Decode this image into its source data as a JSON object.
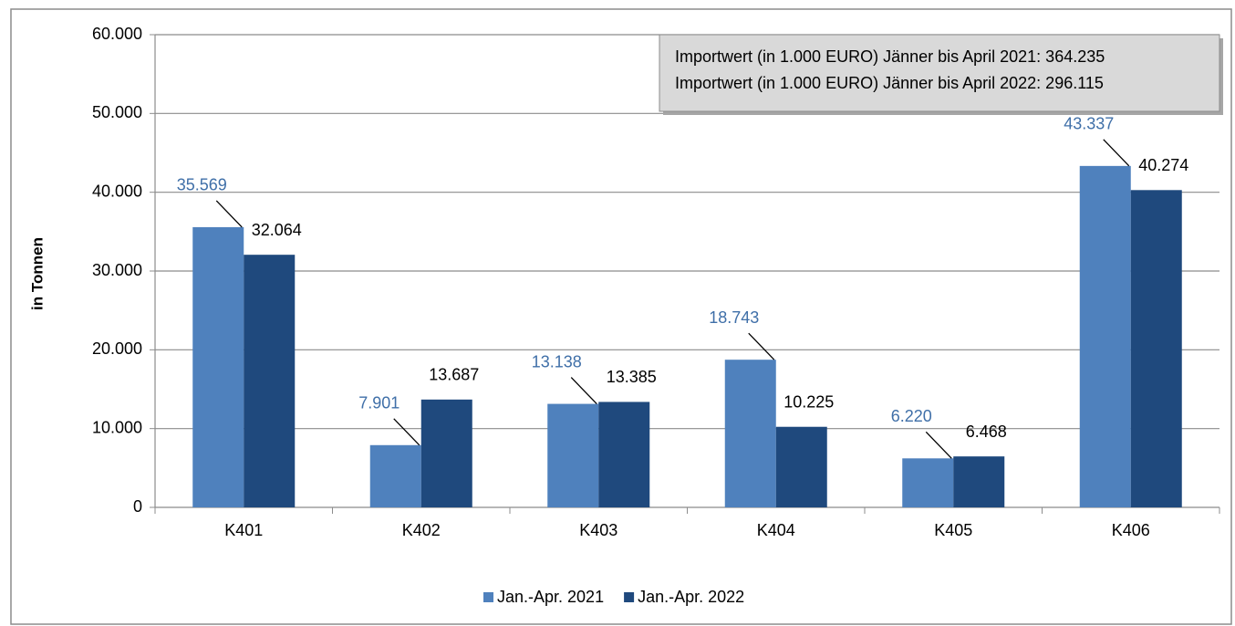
{
  "chart_data": {
    "type": "bar",
    "ylabel": "in Tonnen",
    "annotations": [
      "Importwert (in 1.000 EURO) Jänner bis April 2021: 364.235",
      "Importwert (in 1.000 EURO) Jänner bis April 2022: 296.115"
    ],
    "categories": [
      "K401",
      "K402",
      "K403",
      "K404",
      "K405",
      "K406"
    ],
    "series": [
      {
        "name": "Jan.-Apr. 2021",
        "color": "#4f81bd",
        "label_color": "#3f6fa8",
        "values": [
          35569,
          7901,
          13138,
          18743,
          6220,
          43337
        ],
        "value_labels": [
          "35.569",
          "7.901",
          "13.138",
          "18.743",
          "6.220",
          "43.337"
        ]
      },
      {
        "name": "Jan.-Apr. 2022",
        "color": "#1f497d",
        "label_color": "#000000",
        "values": [
          32064,
          13687,
          13385,
          10225,
          6468,
          40274
        ],
        "value_labels": [
          "32.064",
          "13.687",
          "13.385",
          "10.225",
          "6.468",
          "40.274"
        ]
      }
    ],
    "ylim": [
      0,
      60000
    ],
    "yticks": [
      0,
      {
        "value": 10000,
        "label": "10.000"
      },
      {
        "value": 20000,
        "label": "20.000"
      },
      {
        "value": 30000,
        "label": "30.000"
      },
      {
        "value": 40000,
        "label": "40.000"
      },
      {
        "value": 50000,
        "label": "50.000"
      },
      {
        "value": 60000,
        "label": "60.000"
      }
    ],
    "grid": true,
    "legend": "bottom"
  }
}
